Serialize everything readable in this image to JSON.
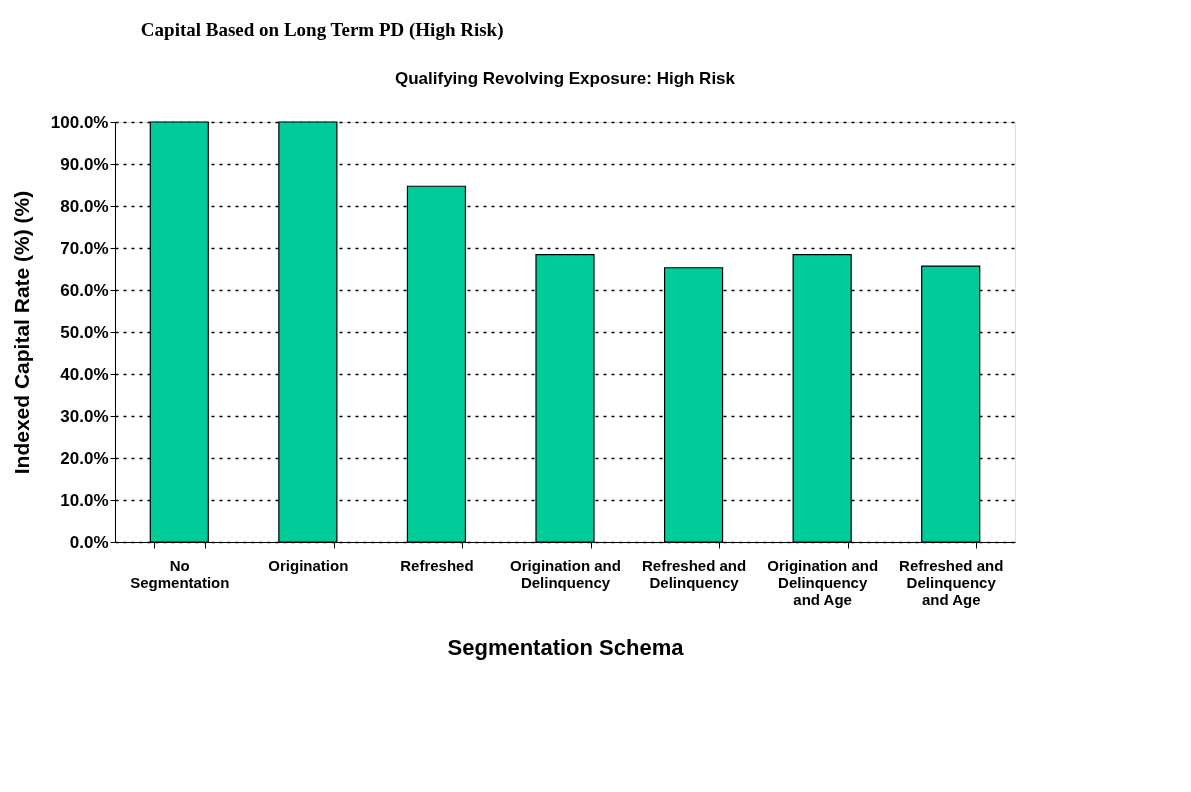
{
  "chart_data": {
    "type": "bar",
    "title": "Capital Based on Long Term PD (High Risk)",
    "subtitle": "Qualifying Revolving Exposure:  High Risk",
    "xlabel": "Segmentation Schema",
    "ylabel": "Indexed Capital Rate (%) (%)",
    "categories": [
      "No\nSegmentation",
      "Origination",
      "Refreshed",
      "Origination and\nDelinquency",
      "Refreshed and\nDelinquency",
      "Origination and\nDelinquency\nand Age",
      "Refreshed and\nDelinquency\nand Age"
    ],
    "values": [
      100,
      100,
      84.7,
      68.4,
      65.3,
      68.4,
      65.7
    ],
    "color": "#00cc99",
    "ylim": [
      0,
      100
    ],
    "yticks": [
      {
        "value": 0,
        "label": "0.0%"
      },
      {
        "value": 10,
        "label": "10.0%"
      },
      {
        "value": 20,
        "label": "20.0%"
      },
      {
        "value": 30,
        "label": "30.0%"
      },
      {
        "value": 40,
        "label": "40.0%"
      },
      {
        "value": 50,
        "label": "50.0%"
      },
      {
        "value": 60,
        "label": "60.0%"
      },
      {
        "value": 70,
        "label": "70.0%"
      },
      {
        "value": 80,
        "label": "80.0%"
      },
      {
        "value": 90,
        "label": "90.0%"
      },
      {
        "value": 100,
        "label": "100.0%"
      }
    ],
    "grid": "y"
  }
}
